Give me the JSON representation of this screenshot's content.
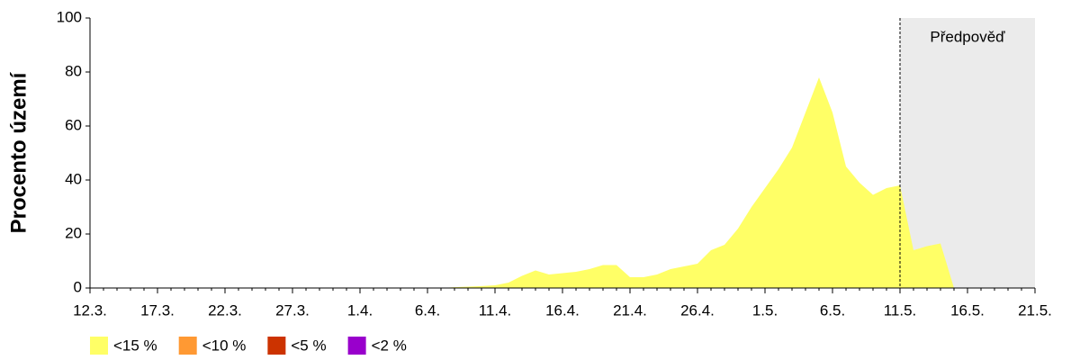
{
  "chart_data": {
    "type": "area",
    "ylabel": "Procento území",
    "forecast_label": "Předpověď",
    "forecast_from": "11.5.",
    "categories": [
      "12.3.",
      null,
      null,
      null,
      null,
      "17.3.",
      null,
      null,
      null,
      null,
      "22.3.",
      null,
      null,
      null,
      null,
      "27.3.",
      null,
      null,
      null,
      null,
      "1.4.",
      null,
      null,
      null,
      null,
      "6.4.",
      null,
      null,
      null,
      null,
      "11.4.",
      null,
      null,
      null,
      null,
      "16.4.",
      null,
      null,
      null,
      null,
      "21.4.",
      null,
      null,
      null,
      null,
      "26.4.",
      null,
      null,
      null,
      null,
      "1.5.",
      null,
      null,
      null,
      null,
      "6.5.",
      null,
      null,
      null,
      null,
      "11.5.",
      null,
      null,
      null,
      null,
      "16.5.",
      null,
      null,
      null,
      null,
      "21.5."
    ],
    "series": [
      {
        "name": "<15 %",
        "color": "#ffff66",
        "values": [
          0,
          0,
          0,
          0,
          0,
          0,
          0,
          0,
          0,
          0,
          0,
          0,
          0,
          0,
          0,
          0,
          0,
          0,
          0,
          0,
          0,
          0,
          0,
          0,
          0,
          0,
          0,
          0.3,
          0.5,
          0.7,
          1,
          2,
          4.5,
          6.5,
          5,
          5.5,
          6,
          7,
          8.5,
          8.5,
          4,
          4,
          5,
          7,
          8,
          9,
          14,
          16,
          22,
          30,
          37,
          44,
          52,
          65,
          78,
          65,
          45,
          39,
          34.5,
          37,
          38,
          14,
          15.5,
          16.5,
          0,
          null,
          null,
          null,
          null,
          null,
          null
        ]
      },
      {
        "name": "<10 %",
        "color": "#ff9933",
        "values": [
          null,
          null,
          null,
          null,
          null,
          null,
          null,
          null,
          null,
          null,
          null,
          null,
          null,
          null,
          null,
          null,
          null,
          null,
          null,
          null,
          null,
          null,
          null,
          null,
          null,
          null,
          null,
          null,
          null,
          null,
          null,
          null,
          null,
          null,
          null,
          null,
          null,
          null,
          null,
          null,
          null,
          null,
          null,
          null,
          null,
          null,
          null,
          null,
          null,
          null,
          null,
          null,
          null,
          null,
          null,
          null,
          null,
          null,
          null,
          null,
          null,
          null,
          null,
          null,
          null,
          null,
          null,
          null,
          null,
          null,
          null
        ]
      },
      {
        "name": "<5 %",
        "color": "#cc3300",
        "values": [
          null,
          null,
          null,
          null,
          null,
          null,
          null,
          null,
          null,
          null,
          null,
          null,
          null,
          null,
          null,
          null,
          null,
          null,
          null,
          null,
          null,
          null,
          null,
          null,
          null,
          null,
          null,
          null,
          null,
          null,
          null,
          null,
          null,
          null,
          null,
          null,
          null,
          null,
          null,
          null,
          null,
          null,
          null,
          null,
          null,
          null,
          null,
          null,
          null,
          null,
          null,
          null,
          null,
          null,
          null,
          null,
          null,
          null,
          null,
          null,
          null,
          null,
          null,
          null,
          null,
          null,
          null,
          null,
          null,
          null,
          null
        ]
      },
      {
        "name": "<2 %",
        "color": "#9900cc",
        "values": [
          null,
          null,
          null,
          null,
          null,
          null,
          null,
          null,
          null,
          null,
          null,
          null,
          null,
          null,
          null,
          null,
          null,
          null,
          null,
          null,
          null,
          null,
          null,
          null,
          null,
          null,
          null,
          null,
          null,
          null,
          null,
          null,
          null,
          null,
          null,
          null,
          null,
          null,
          null,
          null,
          null,
          null,
          null,
          null,
          null,
          null,
          null,
          null,
          null,
          null,
          null,
          null,
          null,
          null,
          null,
          null,
          null,
          null,
          null,
          null,
          null,
          null,
          null,
          null,
          null,
          null,
          null,
          null,
          null,
          null,
          null
        ]
      }
    ],
    "ylim": [
      0,
      100
    ],
    "yticks": [
      0,
      20,
      40,
      60,
      80,
      100
    ],
    "grid": false
  }
}
